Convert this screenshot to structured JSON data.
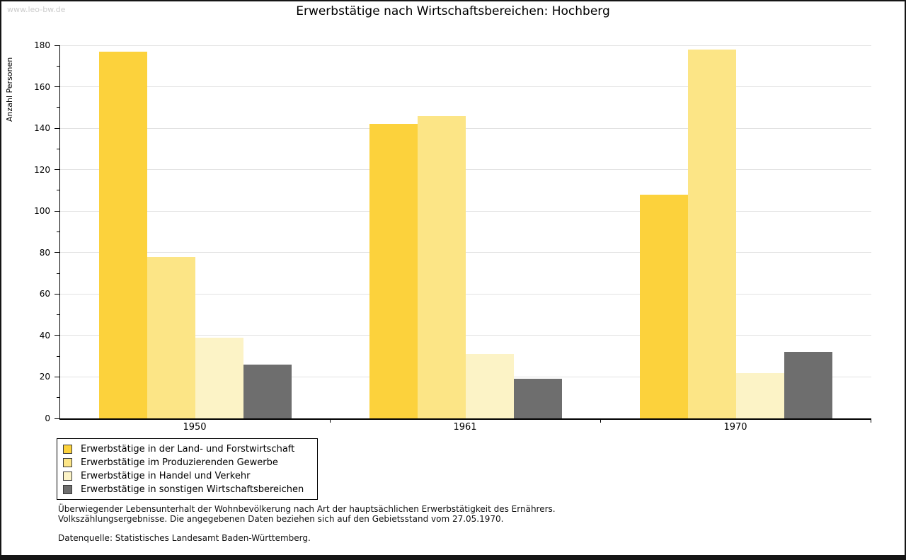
{
  "page": {
    "watermark": "www.leo-bw.de",
    "title": "Erwerbstätige nach Wirtschaftsbereichen: Hochberg"
  },
  "chart_data": {
    "type": "bar",
    "title": "Erwerbstätige nach Wirtschaftsbereichen: Hochberg",
    "xlabel": "",
    "ylabel": "Anzahl Personen",
    "categories": [
      "1950",
      "1961",
      "1970"
    ],
    "series": [
      {
        "name": "Erwerbstätige in der Land- und Forstwirtschaft",
        "color": "#fcd23c",
        "values": [
          177,
          142,
          108
        ]
      },
      {
        "name": "Erwerbstätige im Produzierenden Gewerbe",
        "color": "#fce586",
        "values": [
          78,
          146,
          178
        ]
      },
      {
        "name": "Erwerbstätige in Handel und Verkehr",
        "color": "#fcf3c6",
        "values": [
          39,
          31,
          22
        ]
      },
      {
        "name": "Erwerbstätige in sonstigen Wirtschaftsbereichen",
        "color": "#6e6e6e",
        "values": [
          26,
          19,
          32
        ]
      }
    ],
    "ylim": [
      0,
      180
    ],
    "yticks": [
      0,
      20,
      40,
      60,
      80,
      100,
      120,
      140,
      160,
      180
    ],
    "ytick_minor_step": 10,
    "grid": "horizontal",
    "legend_position": "bottom-left",
    "axis_color": "#000000",
    "gridline_color": "#e2e2e2"
  },
  "footnotes": {
    "line1": "Überwiegender Lebensunterhalt der Wohnbevölkerung nach Art der hauptsächlichen Erwerbstätigkeit des Ernährers.",
    "line2": "Volkszählungsergebnisse. Die angegebenen Daten beziehen sich auf den Gebietsstand vom 27.05.1970.",
    "source": "Datenquelle: Statistisches Landesamt Baden-Württemberg."
  }
}
